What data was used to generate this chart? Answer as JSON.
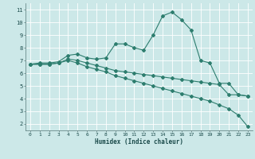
{
  "xlabel": "Humidex (Indice chaleur)",
  "bg_color": "#cce8e8",
  "grid_color": "#ffffff",
  "line_color": "#2d7d6e",
  "xlim": [
    -0.5,
    23.5
  ],
  "ylim": [
    1.5,
    11.5
  ],
  "xticks": [
    0,
    1,
    2,
    3,
    4,
    5,
    6,
    7,
    8,
    9,
    10,
    11,
    12,
    13,
    14,
    15,
    16,
    17,
    18,
    19,
    20,
    21,
    22,
    23
  ],
  "yticks": [
    2,
    3,
    4,
    5,
    6,
    7,
    8,
    9,
    10,
    11
  ],
  "curve1_x": [
    0,
    1,
    2,
    3,
    4,
    5,
    6,
    7,
    8,
    9,
    10,
    11,
    12,
    13,
    14,
    15,
    16,
    17,
    18,
    19,
    20,
    21,
    22,
    23
  ],
  "curve1_y": [
    6.7,
    6.8,
    6.8,
    6.9,
    7.4,
    7.5,
    7.2,
    7.1,
    7.2,
    8.3,
    8.3,
    8.0,
    7.8,
    9.0,
    10.5,
    10.8,
    10.2,
    9.4,
    7.0,
    6.8,
    5.2,
    5.2,
    4.3,
    4.2
  ],
  "curve2_x": [
    0,
    1,
    2,
    3,
    4,
    5,
    6,
    7,
    8,
    9,
    10,
    11,
    12,
    13,
    14,
    15,
    16,
    17,
    18,
    19,
    20,
    21,
    22,
    23
  ],
  "curve2_y": [
    6.7,
    6.7,
    6.7,
    6.8,
    7.1,
    7.0,
    6.8,
    6.6,
    6.4,
    6.2,
    6.1,
    6.0,
    5.9,
    5.8,
    5.7,
    5.6,
    5.5,
    5.4,
    5.3,
    5.2,
    5.1,
    4.3,
    4.3,
    4.2
  ],
  "curve3_x": [
    0,
    1,
    2,
    3,
    4,
    5,
    6,
    7,
    8,
    9,
    10,
    11,
    12,
    13,
    14,
    15,
    16,
    17,
    18,
    19,
    20,
    21,
    22,
    23
  ],
  "curve3_y": [
    6.7,
    6.7,
    6.7,
    6.8,
    7.0,
    6.8,
    6.5,
    6.3,
    6.1,
    5.8,
    5.6,
    5.4,
    5.2,
    5.0,
    4.8,
    4.6,
    4.4,
    4.2,
    4.0,
    3.8,
    3.5,
    3.2,
    2.7,
    1.8
  ]
}
